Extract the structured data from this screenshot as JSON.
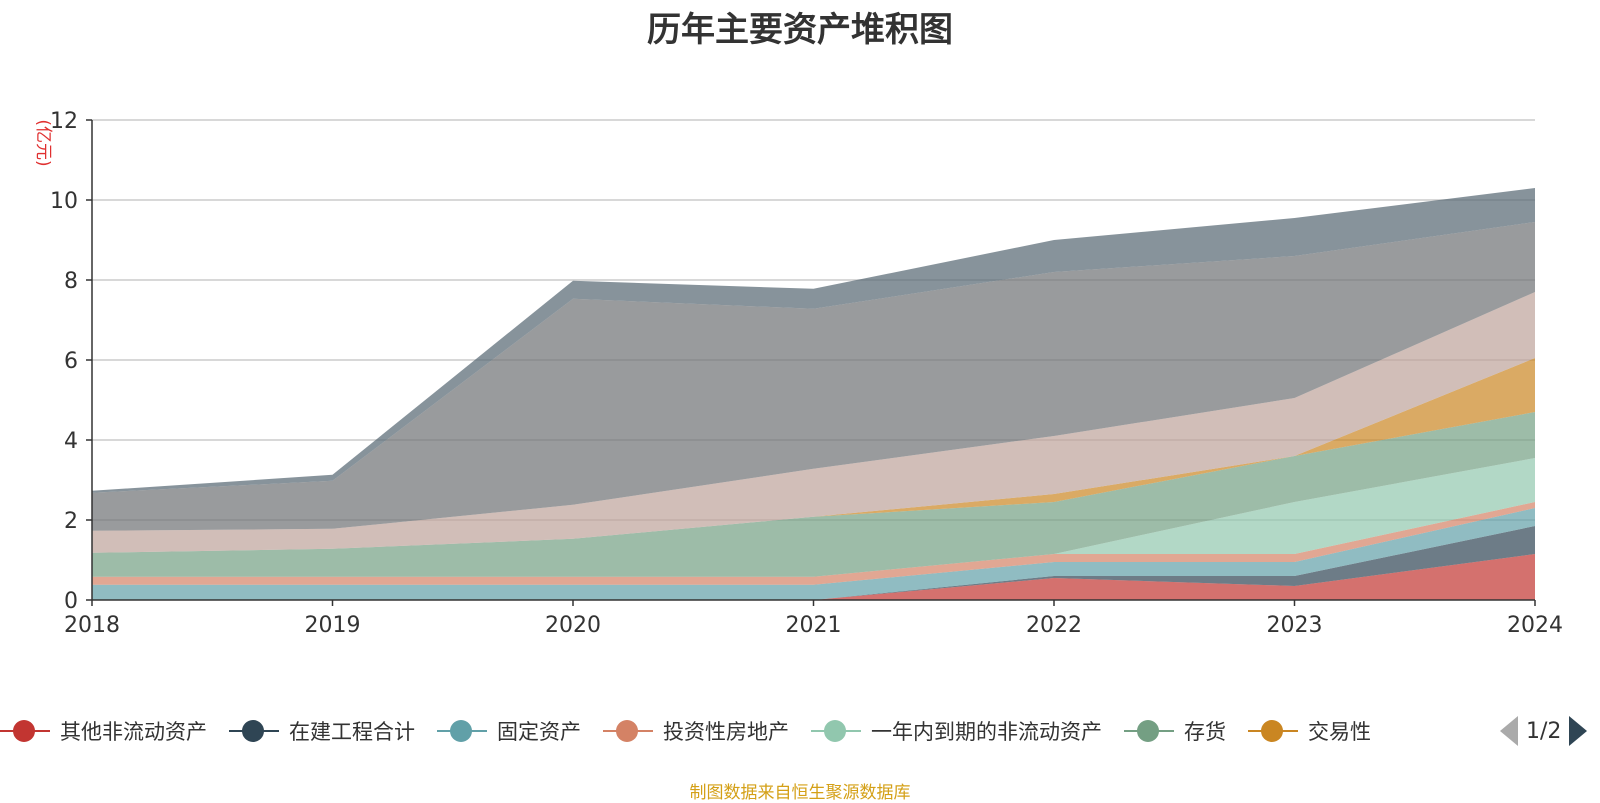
{
  "title": "历年主要资产堆积图",
  "source": "制图数据来自恒生聚源数据库",
  "legend_page": "1/2",
  "chart_data": {
    "type": "area",
    "stacked": true,
    "title": "历年主要资产堆积图",
    "ylabel": "(亿元)",
    "xlabel": "",
    "x": [
      "2018",
      "2019",
      "2020",
      "2021",
      "2022",
      "2023",
      "2024"
    ],
    "ylim": [
      0,
      12
    ],
    "yticks": [
      0,
      2,
      4,
      6,
      8,
      10,
      12
    ],
    "grid": true,
    "legend_position": "bottom",
    "series": [
      {
        "name": "其他非流动资产",
        "color": "#c23531",
        "values": [
          0,
          0,
          0,
          0,
          0.55,
          0.35,
          1.15
        ]
      },
      {
        "name": "在建工程合计",
        "color": "#2f4554",
        "values": [
          0,
          0,
          0,
          0,
          0.05,
          0.25,
          0.7
        ]
      },
      {
        "name": "固定资产",
        "color": "#61a0a8",
        "values": [
          0.38,
          0.38,
          0.38,
          0.38,
          0.35,
          0.35,
          0.45
        ]
      },
      {
        "name": "投资性房地产",
        "color": "#d48265",
        "values": [
          0.2,
          0.2,
          0.2,
          0.2,
          0.2,
          0.2,
          0.15
        ]
      },
      {
        "name": "一年内到期的非流动资产",
        "color": "#91c7ae",
        "values": [
          0,
          0,
          0,
          0,
          0,
          1.3,
          1.1
        ]
      },
      {
        "name": "存货",
        "color": "#749f83",
        "values": [
          0.6,
          0.7,
          0.95,
          1.5,
          1.3,
          1.15,
          1.15
        ]
      },
      {
        "name": "交易性",
        "color": "#ca8622",
        "values": [
          0,
          0,
          0,
          0,
          0.2,
          0,
          1.35
        ]
      },
      {
        "name": "",
        "color": "#bda29a",
        "values": [
          0.55,
          0.5,
          0.85,
          1.2,
          1.45,
          1.45,
          1.65
        ]
      },
      {
        "name": "",
        "color": "#6e7074",
        "values": [
          0.95,
          1.2,
          5.15,
          4.0,
          4.1,
          3.55,
          1.75
        ]
      },
      {
        "name": "",
        "color": "#546570",
        "values": [
          0.05,
          0.15,
          0.45,
          0.5,
          0.8,
          0.95,
          0.85
        ]
      }
    ]
  }
}
